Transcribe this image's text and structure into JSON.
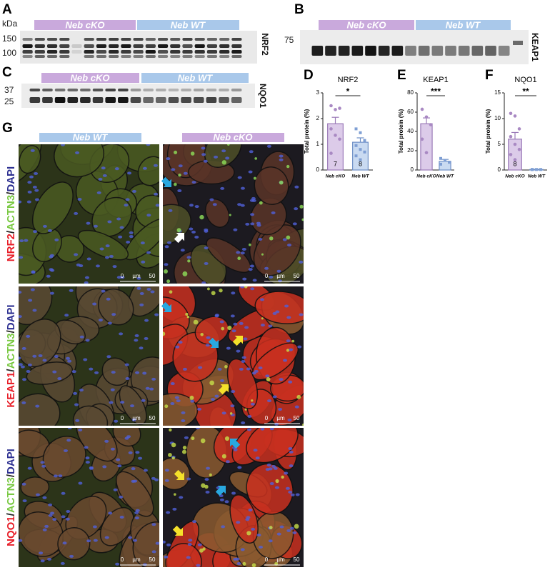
{
  "panel_labels": [
    "A",
    "B",
    "C",
    "D",
    "E",
    "F",
    "G"
  ],
  "groups": {
    "cko": "Neb cKO",
    "wt": "Neb WT"
  },
  "blots": [
    {
      "protein": "NRF2",
      "unit": "kDa",
      "markers": [
        "150",
        "100"
      ]
    },
    {
      "protein": "KEAP1",
      "markers": [
        "75"
      ]
    },
    {
      "protein": "NQO1",
      "markers": [
        "37",
        "25"
      ]
    }
  ],
  "chart_data": [
    {
      "type": "bar",
      "title": "NRF2",
      "ylabel": "Total protein (%)",
      "categories": [
        "Neb cKO",
        "Neb WT"
      ],
      "values": [
        1.8,
        1.08
      ],
      "errors": [
        0.25,
        0.17
      ],
      "colors": [
        "#dccbe9",
        "#c9daf1"
      ],
      "edge_colors": [
        "#9b7bb8",
        "#6e8fc6"
      ],
      "points": [
        [
          2.5,
          2.35,
          2.4,
          1.6,
          1.35,
          1.2,
          0.65
        ],
        [
          1.6,
          1.45,
          1.15,
          0.95,
          0.8,
          0.7,
          0.55,
          0.4
        ]
      ],
      "n_labels": [
        "7",
        "8"
      ],
      "significance": "*",
      "ylim": [
        0,
        3
      ],
      "yticks": [
        0,
        1,
        2,
        3
      ]
    },
    {
      "type": "bar",
      "title": "KEAP1",
      "ylabel": "Total protein (%)",
      "categories": [
        "Neb cKO",
        "Neb WT"
      ],
      "values": [
        48,
        9
      ],
      "errors": [
        6,
        2
      ],
      "colors": [
        "#dccbe9",
        "#c9daf1"
      ],
      "edge_colors": [
        "#9b7bb8",
        "#6e8fc6"
      ],
      "points": [
        [
          63,
          55,
          47,
          32,
          18
        ],
        [
          12,
          10,
          8,
          6
        ]
      ],
      "significance": "***",
      "ylim": [
        0,
        80
      ],
      "yticks": [
        0,
        20,
        40,
        60,
        80
      ]
    },
    {
      "type": "bar",
      "title": "NQO1",
      "ylabel": "Total protein (%)",
      "categories": [
        "Neb cKO",
        "Neb WT"
      ],
      "values": [
        6,
        0.1
      ],
      "errors": [
        1.3,
        0.05
      ],
      "colors": [
        "#dccbe9",
        "#c9daf1"
      ],
      "edge_colors": [
        "#9b7bb8",
        "#6e8fc6"
      ],
      "points": [
        [
          11,
          10.5,
          8,
          6.5,
          5,
          4,
          3,
          2
        ],
        [
          0.1,
          0.1,
          0.1,
          0.1
        ]
      ],
      "n_labels": [
        "8"
      ],
      "significance": "**",
      "ylim": [
        0,
        15
      ],
      "yticks": [
        0,
        5,
        10,
        15
      ]
    }
  ],
  "micrographs": {
    "columns": [
      "Neb WT",
      "Neb cKO"
    ],
    "rows": [
      [
        "NRF2",
        "ACTN3",
        "DAPI"
      ],
      [
        "KEAP1",
        "ACTN3",
        "DAPI"
      ],
      [
        "NQO1",
        "ACTN3",
        "DAPI"
      ]
    ],
    "separator": "/",
    "scale": {
      "start": "0",
      "unit": "µm",
      "end": "50"
    }
  }
}
